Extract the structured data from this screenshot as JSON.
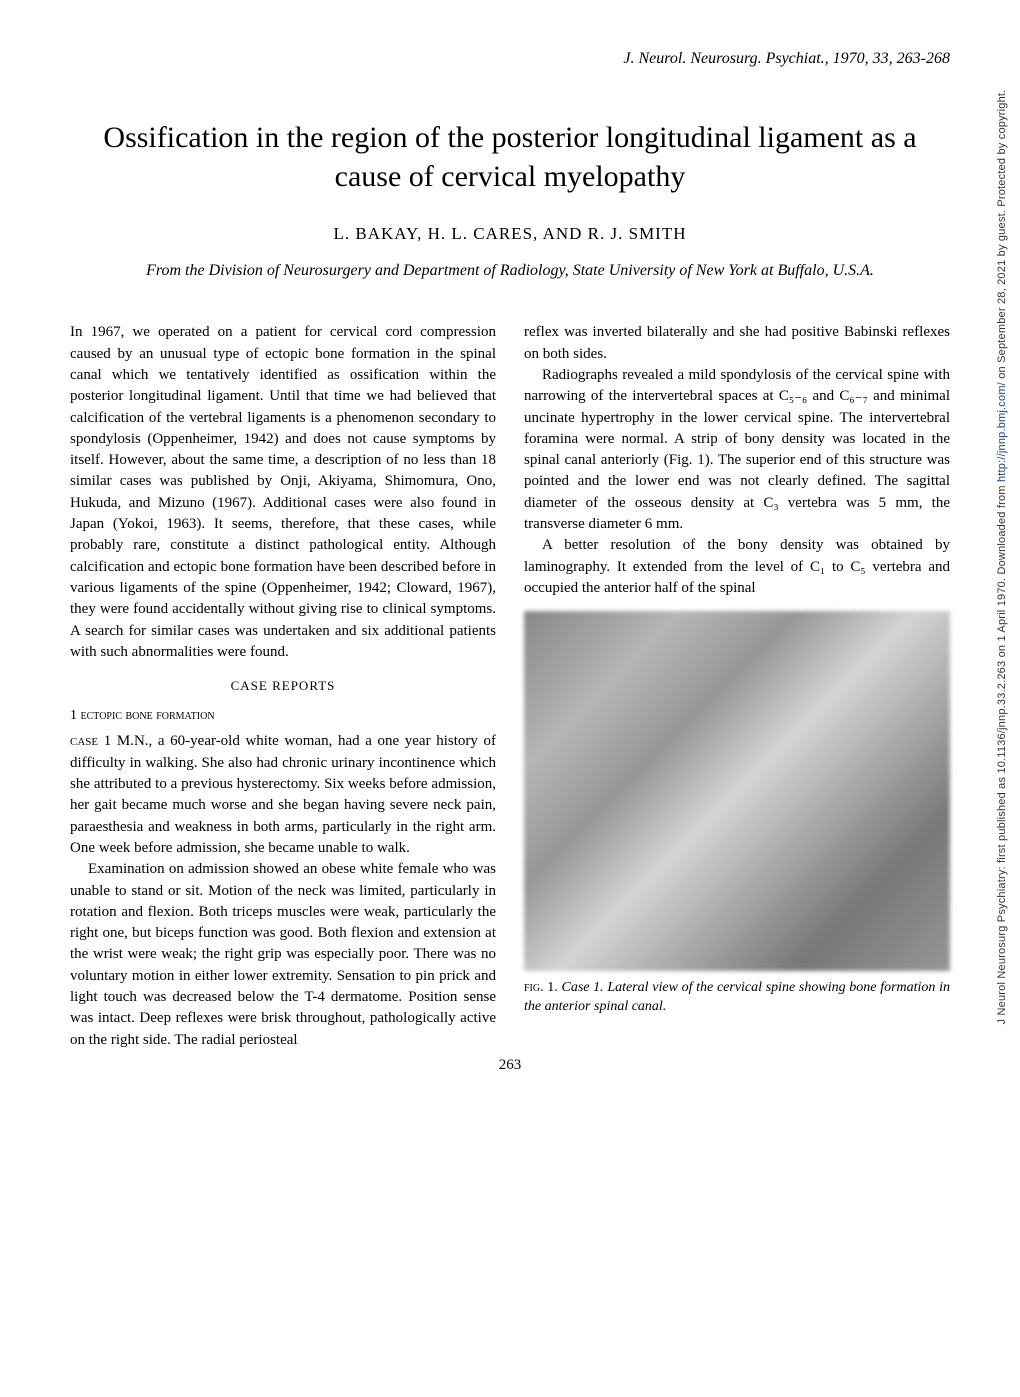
{
  "citation": "J. Neurol. Neurosurg. Psychiat., 1970, 33, 263-268",
  "title": "Ossification in the region of the posterior longitudinal ligament as a cause of cervical myelopathy",
  "authors": "L. BAKAY, H. L. CARES, AND R. J. SMITH",
  "affiliation": "From the Division of Neurosurgery and Department of Radiology, State University of New York at Buffalo, U.S.A.",
  "intro_para": "In 1967, we operated on a patient for cervical cord compression caused by an unusual type of ectopic bone formation in the spinal canal which we tentatively identified as ossification within the posterior longitudinal ligament. Until that time we had believed that calcification of the vertebral ligaments is a phenomenon secondary to spondylosis (Oppenheimer, 1942) and does not cause symptoms by itself. However, about the same time, a description of no less than 18 similar cases was published by Onji, Akiyama, Shimomura, Ono, Hukuda, and Mizuno (1967). Additional cases were also found in Japan (Yokoi, 1963). It seems, therefore, that these cases, while probably rare, constitute a distinct pathological entity. Although calcification and ectopic bone formation have been described before in various ligaments of the spine (Oppenheimer, 1942; Cloward, 1967), they were found accidentally without giving rise to clinical symptoms. A search for similar cases was undertaken and six additional patients with such abnormalities were found.",
  "case_reports_heading": "CASE REPORTS",
  "section1_heading": "1  ectopic bone formation",
  "case1_label": "case 1",
  "case1_para1": "  M.N., a 60-year-old white woman, had a one year history of difficulty in walking. She also had chronic urinary incontinence which she attributed to a previous hysterectomy. Six weeks before admission, her gait became much worse and she began having severe neck pain, paraesthesia and weakness in both arms, particularly in the right arm. One week before admission, she became unable to walk.",
  "case1_para2": "Examination on admission showed an obese white female who was unable to stand or sit. Motion of the neck was limited, particularly in rotation and flexion. Both triceps muscles were weak, particularly the right one, but biceps function was good. Both flexion and extension at the wrist were weak; the right grip was especially poor. There was no voluntary motion in either lower extremity. Sensation to pin prick and light touch was decreased below the T-4 dermatome. Position sense was intact. Deep reflexes were brisk throughout, pathologically active on the right side. The radial periosteal",
  "col2_para1": "reflex was inverted bilaterally and she had positive Babinski reflexes on both sides.",
  "col2_para2": "Radiographs revealed a mild spondylosis of the cervical spine with narrowing of the intervertebral spaces at C₅₋₆ and C₆₋₇ and minimal uncinate hypertrophy in the lower cervical spine. The intervertebral foramina were normal. A strip of bony density was located in the spinal canal anteriorly (Fig. 1). The superior end of this structure was pointed and the lower end was not clearly defined. The sagittal diameter of the osseous density at C₃ vertebra was 5 mm, the transverse diameter 6 mm.",
  "col2_para3": "A better resolution of the bony density was obtained by laminography. It extended from the level of C₁ to C₅ vertebra and occupied the anterior half of the spinal",
  "figure": {
    "label": "fig. 1.",
    "caption": "Case 1. Lateral view of the cervical spine showing bone formation in the anterior spinal canal."
  },
  "page_number": "263",
  "sidebar": {
    "prefix": "J Neurol Neurosurg Psychiatry: first published as 10.1136/jnnp.33.2.263 on 1 April 1970. Downloaded from ",
    "link_text": "http://jnnp.bmj.com/",
    "suffix": " on September 28, 2021 by guest. Protected by copyright."
  }
}
